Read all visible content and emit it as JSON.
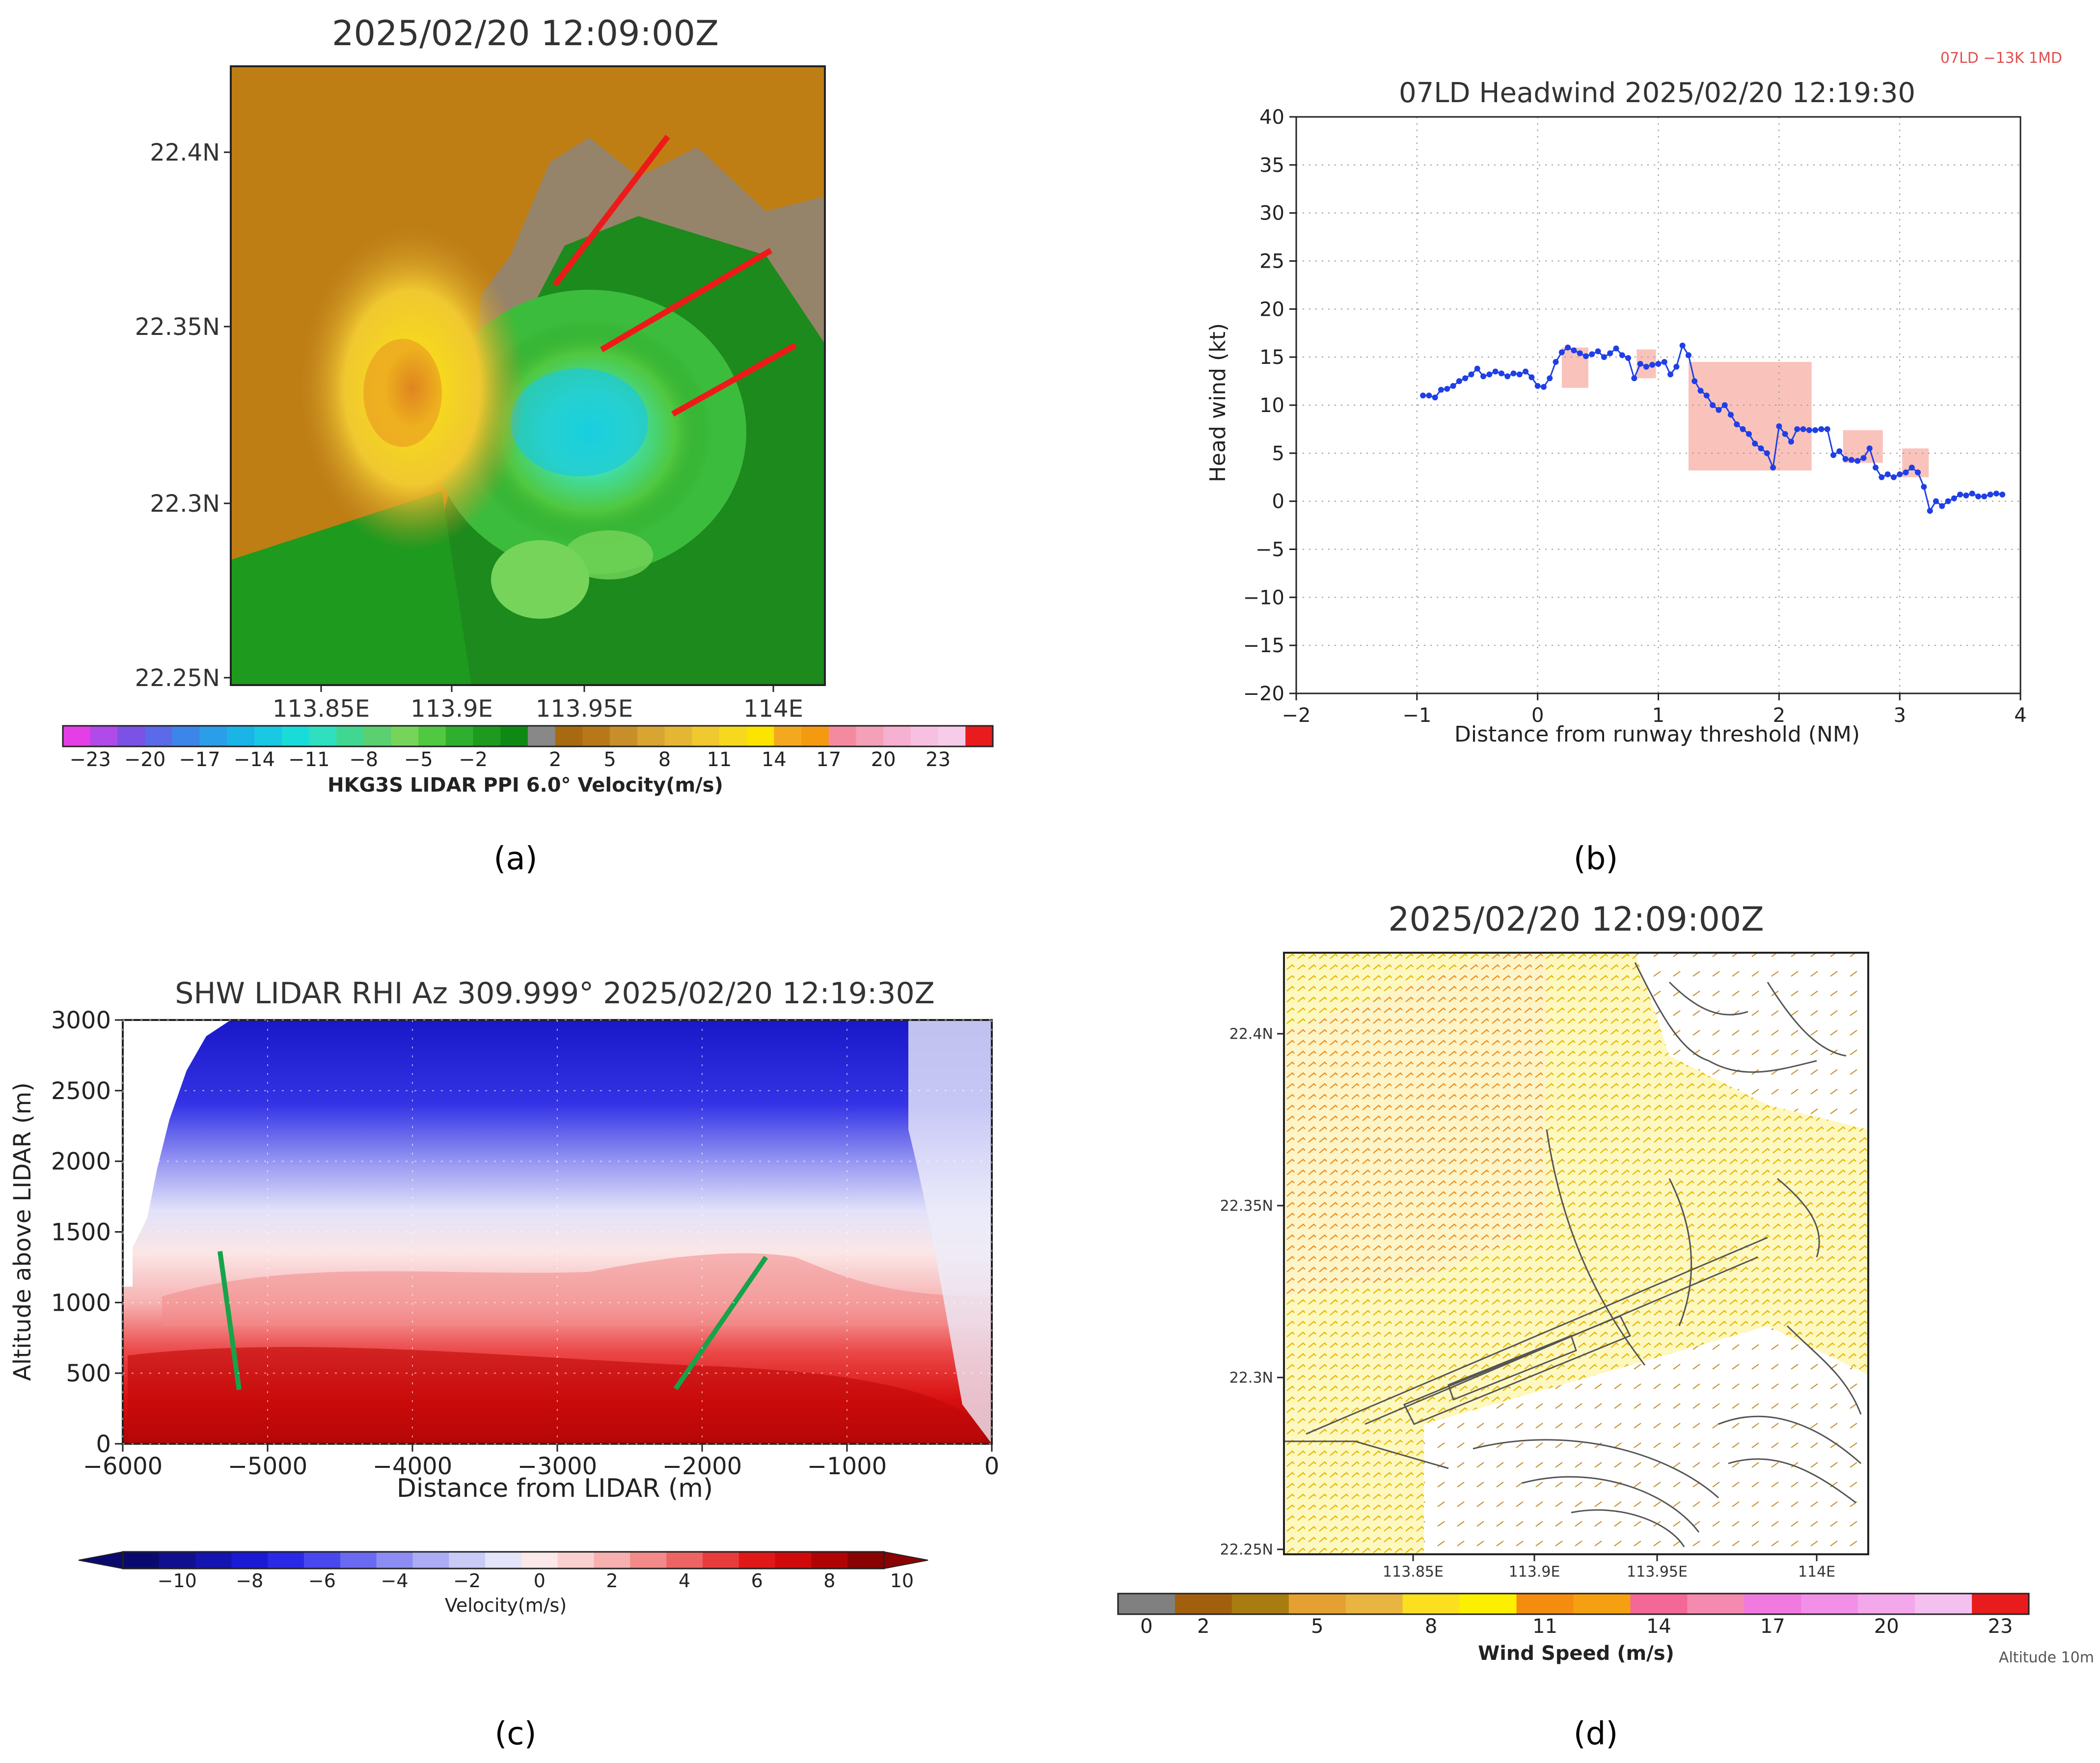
{
  "panel_labels": {
    "a": "(a)",
    "b": "(b)",
    "c": "(c)",
    "d": "(d)"
  },
  "panel_a": {
    "title": "2025/02/20  12:09:00Z",
    "lat_labels": [
      "22.4N",
      "22.35N",
      "22.3N",
      "22.25N"
    ],
    "lon_labels": [
      "113.85E",
      "113.9E",
      "113.95E",
      "114E"
    ],
    "colorbar_ticks": [
      "−23",
      "−20",
      "−17",
      "−14",
      "−11",
      "−8",
      "−5",
      "−2",
      "2",
      "5",
      "8",
      "11",
      "14",
      "17",
      "20",
      "23"
    ],
    "colorbar_label": "HKG3S LIDAR PPI 6.0° Velocity(m/s)",
    "colorbar_colors": [
      "#e63ee6",
      "#b04ae8",
      "#7b52e6",
      "#5a6ae8",
      "#3c86ea",
      "#2a9ee8",
      "#1ab4e6",
      "#19c8e2",
      "#19dcda",
      "#2ee0c0",
      "#40d890",
      "#5ad070",
      "#76d45a",
      "#50c840",
      "#2eb02e",
      "#1e9a1e",
      "#0e8a14",
      "#888888",
      "#a86a10",
      "#b8781a",
      "#c88e2a",
      "#d8a432",
      "#e4b634",
      "#f0c830",
      "#f6d81e",
      "#fce400",
      "#f4a820",
      "#f49a10",
      "#f48aa0",
      "#f4a0b8",
      "#f6b0d0",
      "#f8c0e0",
      "#f6cce8",
      "#e81c1c"
    ],
    "velocity_range_ms": [
      -23,
      23
    ],
    "annotations": "three red line segments"
  },
  "chart_data": {
    "type": "line",
    "title": "07LD Headwind 2025/02/20  12:19:30",
    "corner_tag": "07LD −13K 1MD",
    "xlabel": "Distance from runway threshold (NM)",
    "ylabel": "Head wind (kt)",
    "xlim": [
      -2,
      4
    ],
    "ylim": [
      -20,
      40
    ],
    "xticks": [
      -2,
      -1,
      0,
      1,
      2,
      3,
      4
    ],
    "yticks": [
      -20,
      -15,
      -10,
      -5,
      0,
      5,
      10,
      15,
      20,
      25,
      30,
      35,
      40
    ],
    "grid": true,
    "series": [
      {
        "name": "headwind",
        "color": "#1f3fe6",
        "x": [
          -0.95,
          -0.9,
          -0.85,
          -0.8,
          -0.75,
          -0.7,
          -0.65,
          -0.6,
          -0.55,
          -0.5,
          -0.45,
          -0.4,
          -0.35,
          -0.3,
          -0.25,
          -0.2,
          -0.15,
          -0.1,
          -0.05,
          0.0,
          0.05,
          0.1,
          0.15,
          0.2,
          0.25,
          0.3,
          0.35,
          0.4,
          0.45,
          0.5,
          0.55,
          0.6,
          0.65,
          0.7,
          0.75,
          0.8,
          0.85,
          0.9,
          0.95,
          1.0,
          1.05,
          1.1,
          1.15,
          1.2,
          1.25,
          1.3,
          1.35,
          1.4,
          1.45,
          1.5,
          1.55,
          1.6,
          1.65,
          1.7,
          1.75,
          1.8,
          1.85,
          1.9,
          1.95,
          2.0,
          2.05,
          2.1,
          2.15,
          2.2,
          2.25,
          2.3,
          2.35,
          2.4,
          2.45,
          2.5,
          2.55,
          2.6,
          2.65,
          2.7,
          2.75,
          2.8,
          2.85,
          2.9,
          2.95,
          3.0,
          3.05,
          3.1,
          3.15,
          3.2,
          3.25,
          3.3,
          3.35,
          3.4,
          3.45,
          3.5,
          3.55,
          3.6,
          3.65,
          3.7,
          3.75,
          3.8,
          3.85
        ],
        "values": [
          11,
          11,
          10.8,
          11.6,
          11.7,
          12,
          12.5,
          12.8,
          13.2,
          13.8,
          13,
          13.2,
          13.5,
          13.3,
          13,
          13.3,
          13.2,
          13.5,
          12.9,
          12,
          11.9,
          12.8,
          14.5,
          15.5,
          16,
          15.7,
          15.4,
          15.1,
          15.3,
          15.6,
          15,
          15.4,
          15.9,
          15.2,
          14.9,
          12.8,
          14.3,
          14,
          14.2,
          14.3,
          14.5,
          13.2,
          14,
          16.2,
          15.2,
          12.5,
          11.5,
          11,
          10,
          9.5,
          10,
          9,
          8,
          7.5,
          7,
          6,
          5.5,
          5,
          3.5,
          7.8,
          7,
          6.2,
          7.5,
          7.5,
          7.4,
          7.4,
          7.5,
          7.5,
          4.8,
          5.2,
          4.4,
          4.3,
          4.2,
          4.5,
          5.5,
          3.5,
          2.5,
          2.8,
          2.5,
          2.8,
          3.0,
          3.5,
          3.0,
          1.5,
          -1.0,
          0.0,
          -0.5,
          0.0,
          0.3,
          0.7,
          0.6,
          0.8,
          0.5,
          0.5,
          0.7,
          0.8,
          0.7
        ],
        "marker_color": "#1f3fe6"
      }
    ],
    "shaded_boxes": [
      {
        "x0": 0.2,
        "x1": 0.42,
        "y0": 11.8,
        "y1": 16.0
      },
      {
        "x0": 0.82,
        "x1": 0.98,
        "y0": 12.8,
        "y1": 15.8
      },
      {
        "x0": 1.25,
        "x1": 2.27,
        "y0": 3.2,
        "y1": 14.5
      },
      {
        "x0": 2.53,
        "x1": 2.86,
        "y0": 4.0,
        "y1": 7.4
      },
      {
        "x0": 3.02,
        "x1": 3.24,
        "y0": 2.5,
        "y1": 5.5
      }
    ],
    "box_color": "#f8b8b0"
  },
  "panel_c": {
    "title": "SHW LIDAR RHI Az 309.999° 2025/02/20 12:19:30Z",
    "xlabel": "Distance from LIDAR (m)",
    "ylabel": "Altitude above LIDAR (m)",
    "xlim": [
      -6000,
      0
    ],
    "ylim": [
      0,
      3000
    ],
    "xticks": [
      -6000,
      -5000,
      -4000,
      -3000,
      -2000,
      -1000,
      0
    ],
    "yticks": [
      0,
      500,
      1000,
      1500,
      2000,
      2500,
      3000
    ],
    "xtick_labels": [
      "−6000",
      "−5000",
      "−4000",
      "−3000",
      "−2000",
      "−1000",
      "0"
    ],
    "ytick_labels": [
      "0",
      "500",
      "1000",
      "1500",
      "2000",
      "2500",
      "3000"
    ],
    "colorbar_ticks": [
      "−10",
      "−8",
      "−6",
      "−4",
      "−2",
      "0",
      "2",
      "4",
      "6",
      "8",
      "10"
    ],
    "colorbar_label": "Velocity(m/s)",
    "colorbar_colors": [
      "#0a0a6e",
      "#10108e",
      "#1414b0",
      "#1a1ad4",
      "#2a2ae6",
      "#4848ee",
      "#6a6af0",
      "#8c8cf2",
      "#acacf4",
      "#cacaf6",
      "#e4e4fa",
      "#fbe8e8",
      "#f9d0d0",
      "#f6b0b0",
      "#f28a8a",
      "#ee6464",
      "#e83c3c",
      "#e01818",
      "#d00a0a",
      "#b00404",
      "#8a0202"
    ],
    "annotations": "two green line segments"
  },
  "panel_d": {
    "title": "2025/02/20  12:09:00Z",
    "lat_labels": [
      "22.4N",
      "22.35N",
      "22.3N",
      "22.25N"
    ],
    "lon_labels": [
      "113.85E",
      "113.9E",
      "113.95E",
      "114E"
    ],
    "colorbar_ticks": [
      "0",
      "2",
      "5",
      "8",
      "11",
      "14",
      "17",
      "20",
      "23"
    ],
    "colorbar_label": "Wind Speed (m/s)",
    "altitude_tag": "Altitude  10m",
    "colorbar_colors": [
      "#808080",
      "#a2600e",
      "#a87c10",
      "#e4a030",
      "#e8b640",
      "#fce020",
      "#fcf000",
      "#f48c10",
      "#f4a010",
      "#f46898",
      "#f48ab0",
      "#f07ae0",
      "#f290e8",
      "#f4a8ec",
      "#f4c0f0",
      "#e81c1c"
    ]
  }
}
